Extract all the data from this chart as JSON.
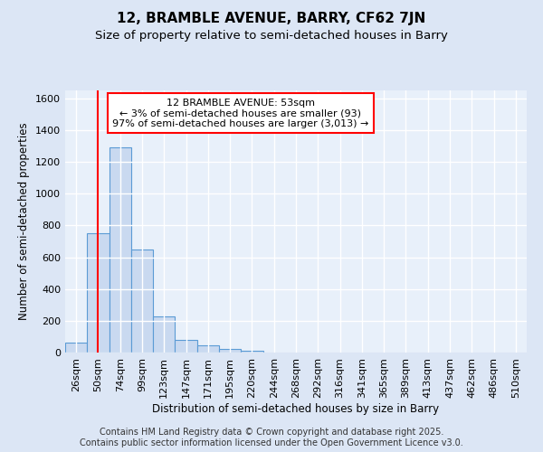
{
  "title": "12, BRAMBLE AVENUE, BARRY, CF62 7JN",
  "subtitle": "Size of property relative to semi-detached houses in Barry",
  "xlabel": "Distribution of semi-detached houses by size in Barry",
  "ylabel": "Number of semi-detached properties",
  "categories": [
    "26sqm",
    "50sqm",
    "74sqm",
    "99sqm",
    "123sqm",
    "147sqm",
    "171sqm",
    "195sqm",
    "220sqm",
    "244sqm",
    "268sqm",
    "292sqm",
    "316sqm",
    "341sqm",
    "365sqm",
    "389sqm",
    "413sqm",
    "437sqm",
    "462sqm",
    "486sqm",
    "510sqm"
  ],
  "values": [
    60,
    750,
    1290,
    650,
    230,
    80,
    45,
    20,
    10,
    0,
    0,
    0,
    0,
    0,
    0,
    0,
    0,
    0,
    0,
    0,
    0
  ],
  "bar_color": "#c9d9f0",
  "bar_edge_color": "#5b9bd5",
  "red_line_x": 1.0,
  "annotation_text": "12 BRAMBLE AVENUE: 53sqm\n← 3% of semi-detached houses are smaller (93)\n97% of semi-detached houses are larger (3,013) →",
  "annotation_box_color": "white",
  "annotation_box_edge_color": "red",
  "ylim": [
    0,
    1650
  ],
  "yticks": [
    0,
    200,
    400,
    600,
    800,
    1000,
    1200,
    1400,
    1600
  ],
  "footnote": "Contains HM Land Registry data © Crown copyright and database right 2025.\nContains public sector information licensed under the Open Government Licence v3.0.",
  "background_color": "#dce6f5",
  "plot_background_color": "#e8f0fa",
  "grid_color": "white",
  "title_fontsize": 11,
  "subtitle_fontsize": 9.5,
  "axis_fontsize": 8.5,
  "tick_fontsize": 8,
  "footnote_fontsize": 7
}
